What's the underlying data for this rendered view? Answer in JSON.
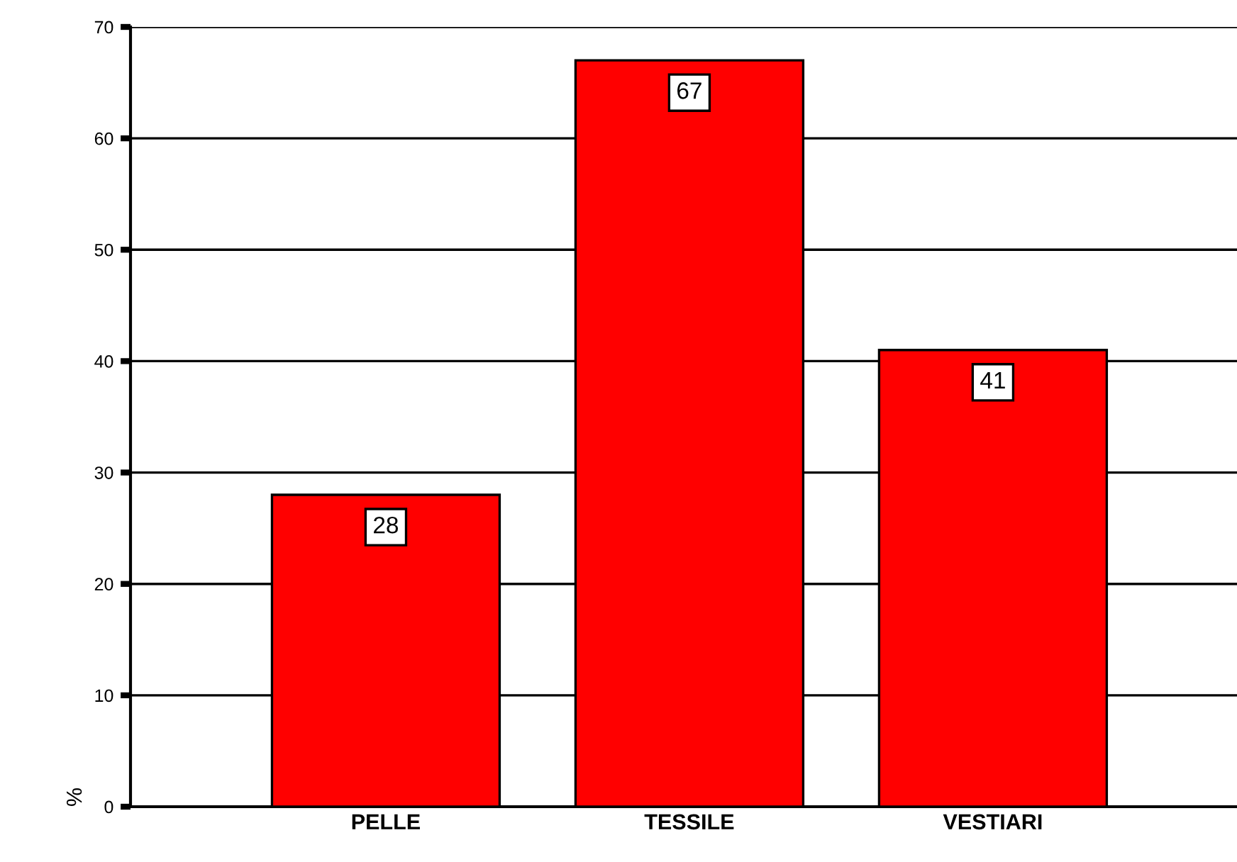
{
  "chart_data": {
    "type": "bar",
    "ylabel": "%",
    "categories": [
      "PELLE",
      "TESSILE",
      "VESTIARI"
    ],
    "values": [
      28,
      67,
      41
    ],
    "color": "#ff0000",
    "ylim": [
      0,
      70
    ],
    "yticks": [
      0,
      10,
      20,
      30,
      40,
      50,
      60,
      70
    ],
    "grid": "y",
    "data_labels": true
  }
}
